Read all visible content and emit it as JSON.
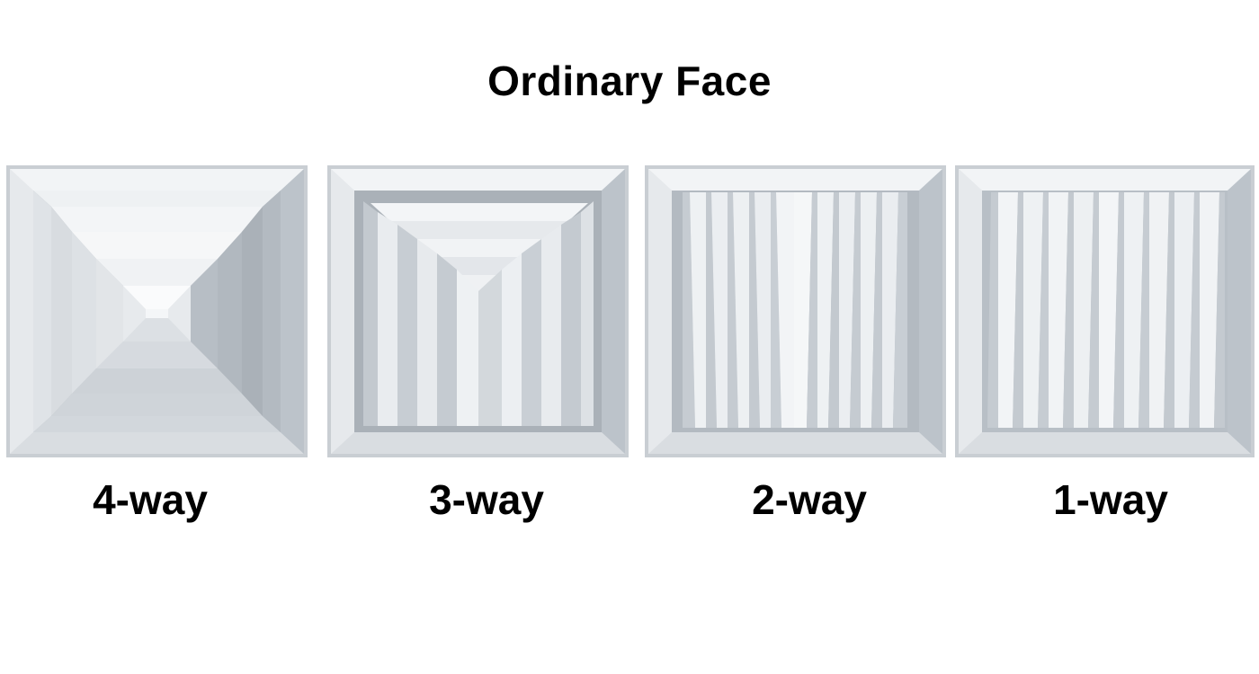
{
  "header": {
    "title": "Ordinary Face"
  },
  "diffusers": [
    {
      "label": "4-way"
    },
    {
      "label": "3-way"
    },
    {
      "label": "2-way"
    },
    {
      "label": "1-way"
    }
  ],
  "colors": {
    "frame_outer": "#c9ced3",
    "frame_inner": "#e4e8ec",
    "blade_light": "#f1f3f5",
    "blade_dark": "#a9b0b7",
    "text": "#000000"
  }
}
